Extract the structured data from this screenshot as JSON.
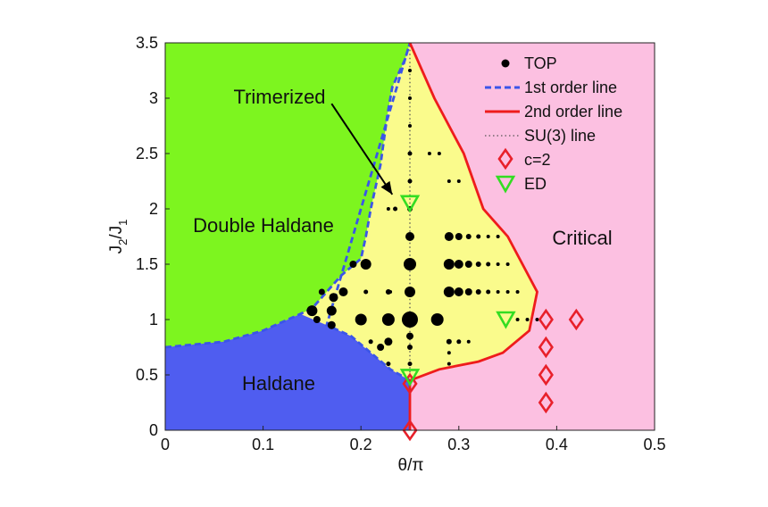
{
  "chart_data": {
    "type": "scatter",
    "xlabel": "θ/π",
    "ylabel_main": "J",
    "ylabel_sub1": "2",
    "ylabel_mid": "/J",
    "ylabel_sub2": "1",
    "xlim": [
      0,
      0.5
    ],
    "ylim": [
      0,
      3.5
    ],
    "xticks": [
      "0",
      "0.1",
      "0.2",
      "0.3",
      "0.4",
      "0.5"
    ],
    "yticks": [
      "0",
      "0.5",
      "1",
      "1.5",
      "2",
      "2.5",
      "3",
      "3.5"
    ],
    "grid": false,
    "legend_position": "top-right",
    "colors": {
      "double_haldane": "#7df51f",
      "haldane": "#4f5df0",
      "trimerized": "#fafb8c",
      "critical": "#fcc0e1",
      "first_order": "#3b55e8",
      "second_order": "#ee1c1c",
      "su3": "#555555",
      "c2": "#e8202a",
      "ed": "#33dd22",
      "top": "#000000"
    },
    "regions": {
      "double_haldane": "Double Haldane",
      "haldane": "Haldane",
      "trimerized": "Trimerized",
      "critical": "Critical"
    },
    "first_order_line": [
      [
        0,
        0.75
      ],
      [
        0.06,
        0.8
      ],
      [
        0.1,
        0.9
      ],
      [
        0.138,
        1.05
      ],
      [
        0.15,
        1.1
      ],
      [
        0.165,
        1.25
      ],
      [
        0.18,
        1.4
      ],
      [
        0.2,
        1.55
      ],
      [
        0.205,
        1.75
      ],
      [
        0.21,
        2.0
      ],
      [
        0.22,
        2.4
      ],
      [
        0.227,
        2.85
      ],
      [
        0.232,
        3.1
      ],
      [
        0.245,
        3.35
      ],
      [
        0.25,
        3.5
      ]
    ],
    "haldane_boundary": [
      [
        0.138,
        1.05
      ],
      [
        0.165,
        0.95
      ],
      [
        0.19,
        0.85
      ],
      [
        0.21,
        0.7
      ],
      [
        0.23,
        0.55
      ],
      [
        0.25,
        0.45
      ]
    ],
    "second_order_line": [
      [
        0.25,
        3.5
      ],
      [
        0.275,
        3.0
      ],
      [
        0.305,
        2.5
      ],
      [
        0.325,
        2.0
      ],
      [
        0.35,
        1.75
      ],
      [
        0.38,
        1.25
      ],
      [
        0.372,
        0.9
      ],
      [
        0.345,
        0.7
      ],
      [
        0.32,
        0.62
      ],
      [
        0.28,
        0.55
      ],
      [
        0.25,
        0.45
      ],
      [
        0.25,
        0.0
      ]
    ],
    "su3_line": {
      "x": 0.25,
      "y": [
        0.45,
        3.5
      ]
    },
    "top_points": [
      {
        "x": 0.25,
        "y": 3.25,
        "s": 2
      },
      {
        "x": 0.25,
        "y": 3.0,
        "s": 2
      },
      {
        "x": 0.25,
        "y": 2.75,
        "s": 2
      },
      {
        "x": 0.25,
        "y": 2.5,
        "s": 2.5
      },
      {
        "x": 0.25,
        "y": 2.25,
        "s": 2.5
      },
      {
        "x": 0.25,
        "y": 2.0,
        "s": 3
      },
      {
        "x": 0.25,
        "y": 1.75,
        "s": 5
      },
      {
        "x": 0.25,
        "y": 1.5,
        "s": 7
      },
      {
        "x": 0.25,
        "y": 1.25,
        "s": 6
      },
      {
        "x": 0.25,
        "y": 1.0,
        "s": 9
      },
      {
        "x": 0.25,
        "y": 0.85,
        "s": 4
      },
      {
        "x": 0.25,
        "y": 0.75,
        "s": 3
      },
      {
        "x": 0.25,
        "y": 0.6,
        "s": 2.5
      },
      {
        "x": 0.228,
        "y": 1.25,
        "s": 3
      },
      {
        "x": 0.228,
        "y": 1.0,
        "s": 7
      },
      {
        "x": 0.228,
        "y": 0.8,
        "s": 4.5
      },
      {
        "x": 0.228,
        "y": 0.6,
        "s": 2.5
      },
      {
        "x": 0.205,
        "y": 1.5,
        "s": 6
      },
      {
        "x": 0.205,
        "y": 1.25,
        "s": 2.5
      },
      {
        "x": 0.2,
        "y": 1.0,
        "s": 6.5
      },
      {
        "x": 0.192,
        "y": 1.5,
        "s": 4
      },
      {
        "x": 0.182,
        "y": 1.25,
        "s": 5
      },
      {
        "x": 0.172,
        "y": 1.2,
        "s": 5
      },
      {
        "x": 0.17,
        "y": 1.08,
        "s": 5.5
      },
      {
        "x": 0.17,
        "y": 0.95,
        "s": 4.5
      },
      {
        "x": 0.15,
        "y": 1.08,
        "s": 6
      },
      {
        "x": 0.155,
        "y": 1.0,
        "s": 4
      },
      {
        "x": 0.16,
        "y": 1.25,
        "s": 3.5
      },
      {
        "x": 0.22,
        "y": 0.75,
        "s": 4
      },
      {
        "x": 0.21,
        "y": 0.8,
        "s": 2.5
      },
      {
        "x": 0.235,
        "y": 2.0,
        "s": 2.5
      },
      {
        "x": 0.228,
        "y": 2.0,
        "s": 2
      },
      {
        "x": 0.23,
        "y": 1.25,
        "s": 2
      },
      {
        "x": 0.278,
        "y": 1.0,
        "s": 7
      },
      {
        "x": 0.29,
        "y": 1.75,
        "s": 5
      },
      {
        "x": 0.3,
        "y": 1.75,
        "s": 4
      },
      {
        "x": 0.31,
        "y": 1.75,
        "s": 3
      },
      {
        "x": 0.32,
        "y": 1.75,
        "s": 2.5
      },
      {
        "x": 0.33,
        "y": 1.75,
        "s": 2
      },
      {
        "x": 0.34,
        "y": 1.75,
        "s": 2
      },
      {
        "x": 0.29,
        "y": 1.5,
        "s": 6
      },
      {
        "x": 0.3,
        "y": 1.5,
        "s": 5
      },
      {
        "x": 0.31,
        "y": 1.5,
        "s": 4
      },
      {
        "x": 0.32,
        "y": 1.5,
        "s": 3
      },
      {
        "x": 0.33,
        "y": 1.5,
        "s": 2.5
      },
      {
        "x": 0.34,
        "y": 1.5,
        "s": 2
      },
      {
        "x": 0.35,
        "y": 1.5,
        "s": 2
      },
      {
        "x": 0.29,
        "y": 1.25,
        "s": 6
      },
      {
        "x": 0.3,
        "y": 1.25,
        "s": 5
      },
      {
        "x": 0.31,
        "y": 1.25,
        "s": 4
      },
      {
        "x": 0.32,
        "y": 1.25,
        "s": 3
      },
      {
        "x": 0.33,
        "y": 1.25,
        "s": 2.5
      },
      {
        "x": 0.34,
        "y": 1.25,
        "s": 2
      },
      {
        "x": 0.35,
        "y": 1.25,
        "s": 2
      },
      {
        "x": 0.36,
        "y": 1.25,
        "s": 2
      },
      {
        "x": 0.29,
        "y": 0.8,
        "s": 3
      },
      {
        "x": 0.3,
        "y": 0.8,
        "s": 2.5
      },
      {
        "x": 0.31,
        "y": 0.8,
        "s": 2
      },
      {
        "x": 0.29,
        "y": 0.7,
        "s": 2
      },
      {
        "x": 0.29,
        "y": 0.6,
        "s": 2
      },
      {
        "x": 0.27,
        "y": 2.5,
        "s": 2
      },
      {
        "x": 0.28,
        "y": 2.5,
        "s": 2
      },
      {
        "x": 0.29,
        "y": 2.25,
        "s": 2
      },
      {
        "x": 0.3,
        "y": 2.25,
        "s": 2
      },
      {
        "x": 0.36,
        "y": 1.0,
        "s": 2
      },
      {
        "x": 0.37,
        "y": 1.0,
        "s": 2
      },
      {
        "x": 0.38,
        "y": 1.0,
        "s": 2
      }
    ],
    "c2_points": [
      [
        0.25,
        0.0
      ],
      [
        0.25,
        0.42
      ],
      [
        0.389,
        0.25
      ],
      [
        0.389,
        0.5
      ],
      [
        0.389,
        0.75
      ],
      [
        0.389,
        1.0
      ],
      [
        0.42,
        1.0
      ]
    ],
    "ed_points": [
      [
        0.25,
        0.48
      ],
      [
        0.25,
        2.05
      ],
      [
        0.348,
        1.0
      ]
    ],
    "annotation": {
      "text": "Trimerized",
      "from": [
        0.17,
        2.95
      ],
      "to": [
        0.232,
        2.13
      ]
    },
    "legend": [
      {
        "label": "TOP",
        "marker": "dot"
      },
      {
        "label": "1st order line",
        "marker": "dashed-blue"
      },
      {
        "label": "2nd order line",
        "marker": "solid-red"
      },
      {
        "label": "SU(3) line",
        "marker": "dotted"
      },
      {
        "label": "c=2",
        "marker": "diamond"
      },
      {
        "label": "ED",
        "marker": "triangle"
      }
    ]
  }
}
